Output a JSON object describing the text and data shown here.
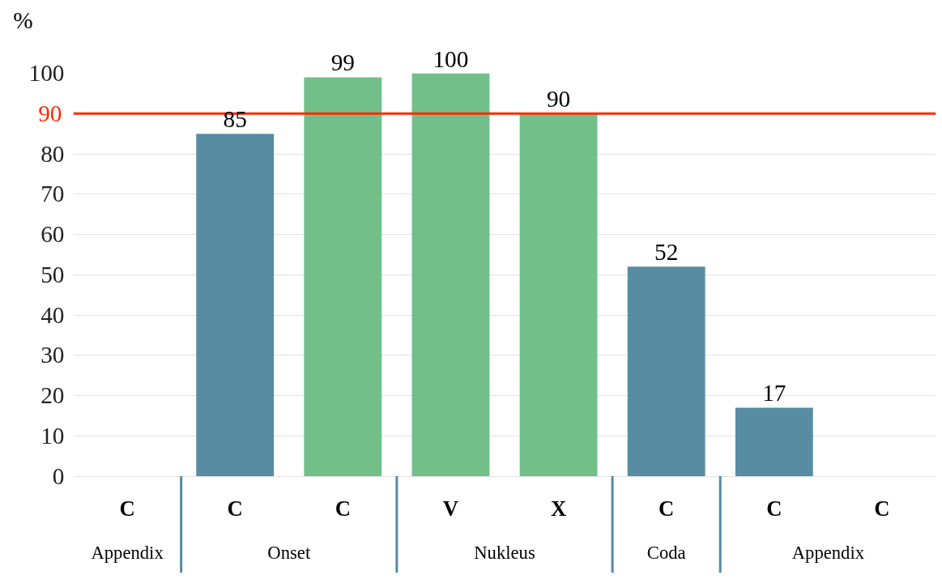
{
  "chart_data": {
    "type": "bar",
    "ylabel": "%",
    "categories": [
      "C",
      "C",
      "C",
      "V",
      "X",
      "C",
      "C",
      "C"
    ],
    "values": [
      null,
      85,
      99,
      100,
      90,
      52,
      17,
      null
    ],
    "colors": [
      "#578ca3",
      "#578ca3",
      "#72bf8a",
      "#72bf8a",
      "#72bf8a",
      "#578ca3",
      "#578ca3",
      "#578ca3"
    ],
    "data_labels": true,
    "annotations": [
      "Appendix",
      "Onset",
      "Nukleus",
      "Coda",
      "Appendix"
    ],
    "ylim": [
      0,
      100
    ],
    "yticks": [
      0,
      10,
      20,
      30,
      40,
      50,
      60,
      70,
      80,
      100
    ],
    "ref_lines": [
      {
        "axis": "y",
        "value": 90,
        "label": "90",
        "color": "#ff2a00"
      }
    ],
    "grid": "y"
  }
}
